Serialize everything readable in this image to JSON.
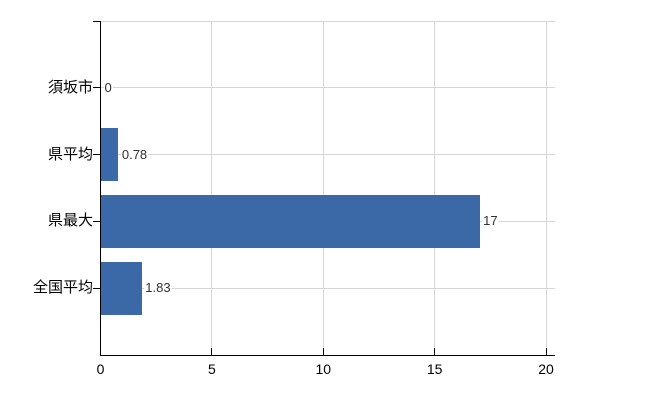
{
  "chart_data": {
    "type": "bar",
    "orientation": "horizontal",
    "title": "",
    "xlabel": "",
    "ylabel": "",
    "categories": [
      "須坂市",
      "県平均",
      "県最大",
      "全国平均"
    ],
    "values": [
      0,
      0.78,
      17,
      1.83
    ],
    "value_labels": [
      "0",
      "0.78",
      "17",
      "1.83"
    ],
    "xlim": [
      0,
      20
    ],
    "x_ticks": [
      0,
      5,
      10,
      15,
      20
    ],
    "x_tick_labels": [
      "0",
      "5",
      "10",
      "15",
      "20"
    ],
    "grid": true,
    "legend": "none",
    "colors": {
      "bar": "#3b69a8",
      "gridline": "#d6d6d6",
      "plot_border": "#d6d6d6",
      "axis": "#000000",
      "value_text": "#303030",
      "label_text": "#000000",
      "background": "#ffffff"
    }
  }
}
